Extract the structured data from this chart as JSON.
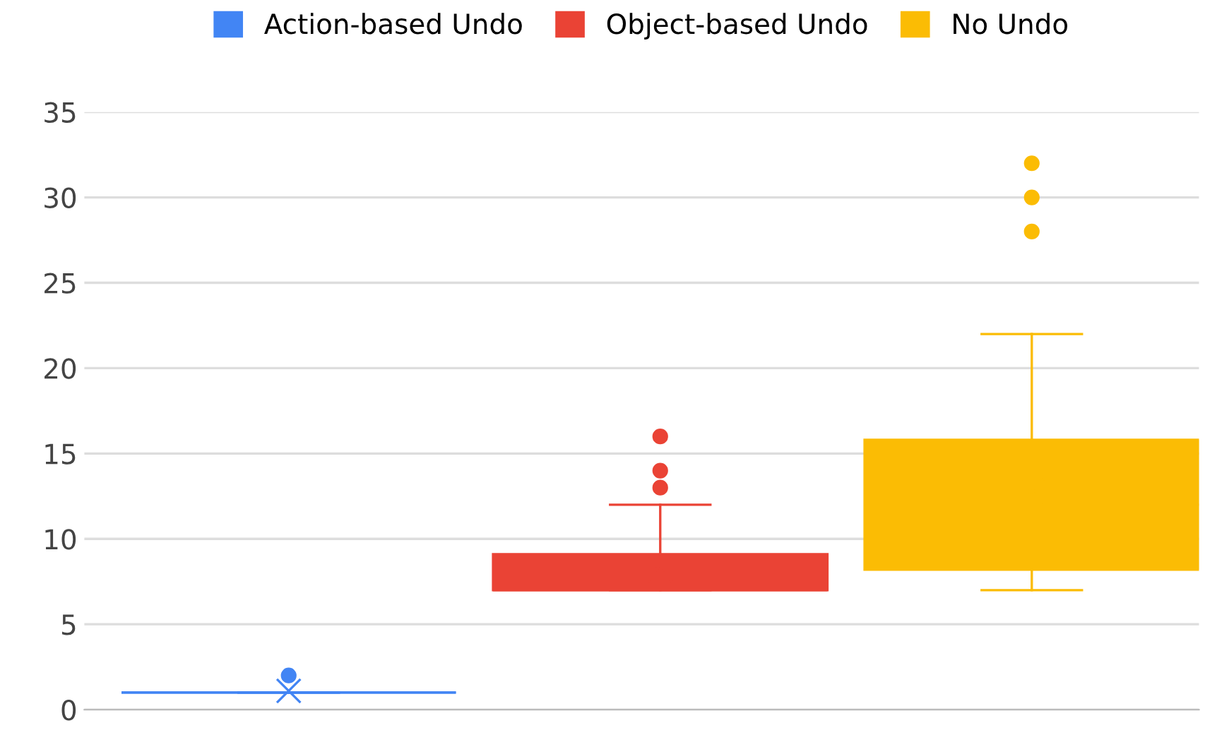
{
  "chart_data": {
    "type": "box",
    "categories": [
      null,
      null,
      null
    ],
    "series": [
      {
        "name": "Action-based Undo",
        "color": "#4285f4",
        "boxes": [
          {
            "low": 1,
            "q1": 1,
            "median": 1,
            "q3": 1,
            "high": 1,
            "mean": 1.1,
            "outliers": [
              2
            ]
          },
          null,
          null
        ]
      },
      {
        "name": "Object-based Undo",
        "color": "#ea4335",
        "boxes": [
          null,
          {
            "low": 7,
            "q1": 7,
            "median": 7,
            "q3": 9.1,
            "high": 12,
            "mean": 8.2,
            "outliers": [
              13,
              14,
              16
            ]
          },
          null
        ]
      },
      {
        "name": "No Undo",
        "color": "#fbbc04",
        "boxes": [
          null,
          null,
          {
            "low": 7,
            "q1": 8.2,
            "median": 12,
            "q3": 15.8,
            "high": 22,
            "mean": 12.8,
            "outliers": [
              28,
              30,
              32
            ]
          }
        ]
      }
    ],
    "ylim": [
      0,
      35
    ],
    "yticks": [
      0,
      5,
      10,
      15,
      20,
      25,
      30,
      35
    ],
    "grid": "y",
    "legend": "top",
    "marker": "cross"
  }
}
